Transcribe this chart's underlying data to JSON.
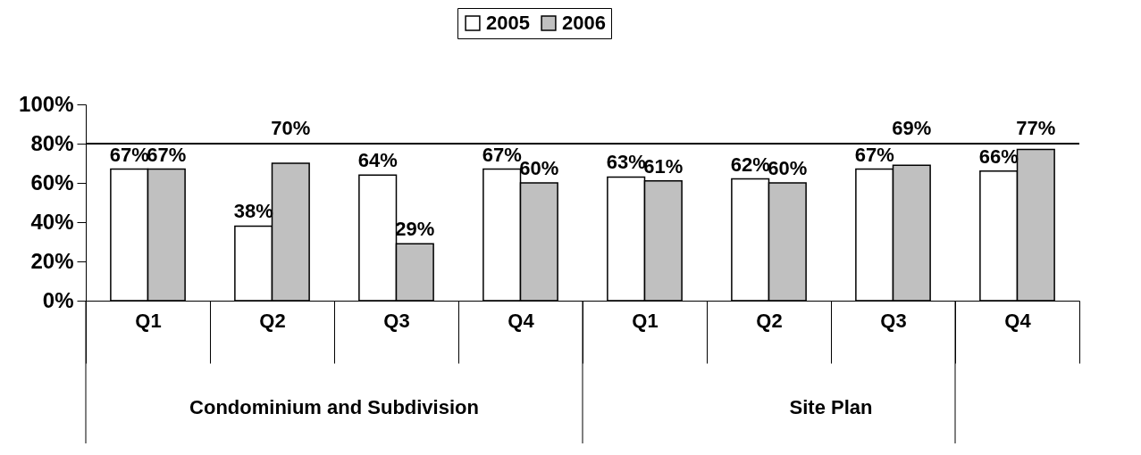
{
  "chart_data": {
    "type": "bar",
    "categories": [
      "Q1",
      "Q2",
      "Q3",
      "Q4",
      "Q1",
      "Q2",
      "Q3",
      "Q4"
    ],
    "series": [
      {
        "name": "2005",
        "color": "#ffffff",
        "values": [
          67,
          38,
          64,
          67,
          63,
          62,
          67,
          66
        ],
        "value_labels": [
          "67%",
          "38%",
          "64%",
          "67%",
          "63%",
          "62%",
          "67%",
          "66%"
        ]
      },
      {
        "name": "2006",
        "color": "#c0c0c0",
        "values": [
          67,
          70,
          29,
          60,
          61,
          60,
          69,
          77
        ],
        "value_labels": [
          "67%",
          "70%",
          "29%",
          "60%",
          "61%",
          "60%",
          "69%",
          "77%"
        ]
      }
    ],
    "ylim": [
      0,
      100
    ],
    "yticks": [
      {
        "value": 0,
        "label": "0%"
      },
      {
        "value": 20,
        "label": "20%"
      },
      {
        "value": 40,
        "label": "40%"
      },
      {
        "value": 60,
        "label": "60%"
      },
      {
        "value": 80,
        "label": "80%"
      },
      {
        "value": 100,
        "label": "100%"
      }
    ],
    "ref_lines": [
      {
        "axis": "y",
        "value": 80,
        "label": null
      }
    ],
    "annotations": [
      "Condominium and Subdivision",
      "Site Plan"
    ],
    "legend": "top",
    "grid": false
  }
}
